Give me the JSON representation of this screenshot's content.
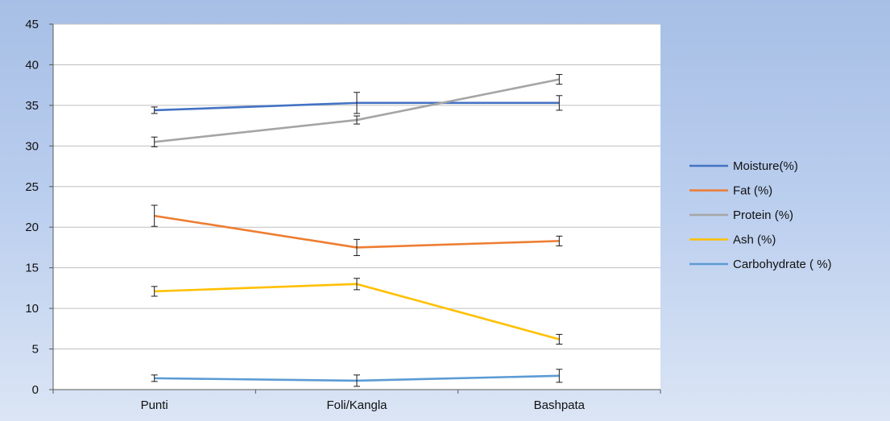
{
  "chart_data": {
    "type": "line",
    "categories": [
      "Punti",
      "Foli/Kangla",
      "Bashpata"
    ],
    "ylim": [
      0,
      45
    ],
    "yticks": [
      0,
      5,
      10,
      15,
      20,
      25,
      30,
      35,
      40,
      45
    ],
    "grid": true,
    "legend_position": "right",
    "series": [
      {
        "name": "Moisture(%)",
        "color": "#4472c4",
        "values": [
          34.4,
          35.3,
          35.3
        ],
        "errors": [
          0.4,
          1.3,
          0.9
        ]
      },
      {
        "name": "Fat (%)",
        "color": "#ed7d31",
        "values": [
          21.4,
          17.5,
          18.3
        ],
        "errors": [
          1.3,
          1.0,
          0.6
        ]
      },
      {
        "name": "Protein (%)",
        "color": "#a5a5a5",
        "values": [
          30.5,
          33.2,
          38.2
        ],
        "errors": [
          0.6,
          0.5,
          0.6
        ]
      },
      {
        "name": "Ash (%)",
        "color": "#ffc000",
        "values": [
          12.1,
          13.0,
          6.2
        ],
        "errors": [
          0.6,
          0.7,
          0.6
        ]
      },
      {
        "name": "Carbohydrate ( %)",
        "color": "#5b9bd5",
        "values": [
          1.4,
          1.1,
          1.7
        ],
        "errors": [
          0.4,
          0.7,
          0.8
        ]
      }
    ]
  }
}
